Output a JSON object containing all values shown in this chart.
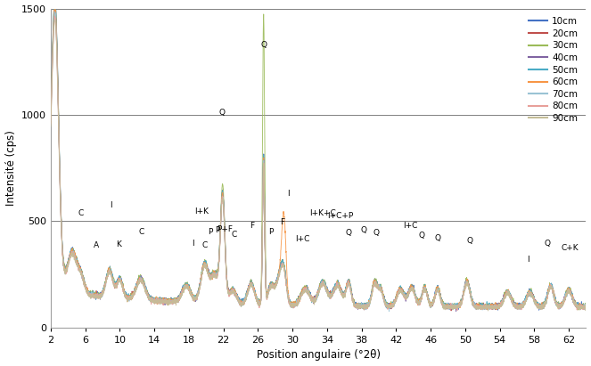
{
  "xlabel": "Position angulaire (°2θ)",
  "ylabel": "Intensité (cps)",
  "xlim": [
    2,
    64
  ],
  "ylim": [
    0,
    1500
  ],
  "yticks": [
    0,
    500,
    1000,
    1500
  ],
  "xticks": [
    2,
    6,
    10,
    14,
    18,
    22,
    26,
    30,
    34,
    38,
    42,
    46,
    50,
    54,
    58,
    62
  ],
  "legend_entries": [
    "10cm",
    "20cm",
    "30cm",
    "40cm",
    "50cm",
    "60cm",
    "70cm",
    "80cm",
    "90cm"
  ],
  "legend_colors": [
    "#4472C4",
    "#C0504D",
    "#9BBB59",
    "#8064A2",
    "#4BACC6",
    "#F79646",
    "#9AC3D4",
    "#E8A09A",
    "#C4BD97"
  ],
  "background_color": "#ffffff",
  "grid_color": "#808080"
}
